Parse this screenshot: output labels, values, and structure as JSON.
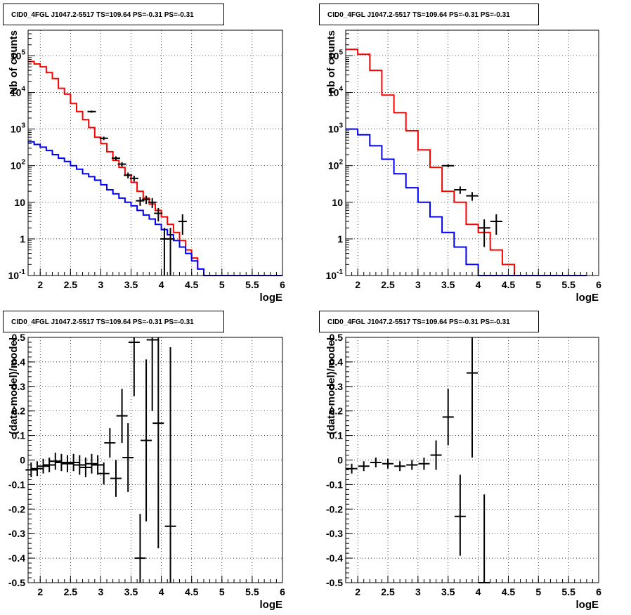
{
  "panels": [
    {
      "title": "CID0_4FGL J1047.2-5517 TS=109.64 PS=-0.31 PS=-0.31",
      "xlabel": "logE",
      "ylabel": "Nb of counts"
    },
    {
      "title": "CID0_4FGL J1047.2-5517 TS=109.64 PS=-0.31 PS=-0.31",
      "xlabel": "logE",
      "ylabel": "nb of counts"
    },
    {
      "title": "CID0_4FGL J1047.2-5517 TS=109.64 PS=-0.31 PS=-0.31",
      "xlabel": "logE",
      "ylabel": "(data-model)/model"
    },
    {
      "title": "CID0_4FGL J1047.2-5517 TS=109.64 PS=-0.31 PS=-0.31",
      "xlabel": "logE",
      "ylabel": "(data-model)/model"
    }
  ],
  "chart_data": [
    {
      "type": "line",
      "title": "CID0_4FGL J1047.2-5517 TS=109.64 PS=-0.31 PS=-0.31",
      "xlabel": "logE",
      "ylabel": "Nb of counts",
      "xlim": [
        1.8,
        6.0
      ],
      "ylim": [
        0.1,
        500000
      ],
      "yscale": "log",
      "grid": true,
      "x_ticks": [
        "2",
        "2.5",
        "3",
        "3.5",
        "4",
        "4.5",
        "5",
        "5.5",
        "6"
      ],
      "y_ticks": [
        "10^-1",
        "1",
        "10",
        "10^2",
        "10^3",
        "10^4",
        "10^5"
      ],
      "bin_edges": [
        1.8,
        1.9,
        2.0,
        2.1,
        2.2,
        2.3,
        2.4,
        2.5,
        2.6,
        2.7,
        2.8,
        2.9,
        3.0,
        3.1,
        3.2,
        3.3,
        3.4,
        3.5,
        3.6,
        3.7,
        3.8,
        3.9,
        4.0,
        4.1,
        4.2,
        4.3,
        4.4,
        4.5,
        4.6,
        4.7,
        4.8,
        4.9,
        5.0,
        5.1,
        5.2,
        5.3,
        5.4,
        5.5,
        5.6,
        5.7,
        5.8,
        5.9,
        6.0
      ],
      "series": [
        {
          "color": "#ff0000",
          "style": "step",
          "values": [
            70000,
            60000,
            50000,
            35000,
            24000,
            13000,
            9000,
            5000,
            3000,
            1800,
            1100,
            600,
            400,
            240,
            140,
            90,
            55,
            35,
            20,
            13,
            9,
            6,
            4,
            2.5,
            1.5,
            0.9,
            0.5,
            0.3,
            0.15,
            0.1,
            0.1,
            0.1,
            0.1,
            0.1,
            0.1,
            0.1,
            0.1,
            0.1,
            0.1,
            0.1,
            0.1,
            0.1
          ]
        },
        {
          "color": "#0000ff",
          "style": "step",
          "values": [
            450,
            380,
            320,
            260,
            200,
            160,
            130,
            100,
            80,
            60,
            50,
            40,
            30,
            22,
            17,
            13,
            10,
            8,
            6,
            4.5,
            3.5,
            2.5,
            1.8,
            1.3,
            0.9,
            0.6,
            0.4,
            0.25,
            0.15,
            0.1,
            0.1,
            0.1,
            0.1,
            0.1,
            0.1,
            0.1,
            0.1,
            0.1,
            0.1,
            0.1,
            0.1,
            0.1
          ]
        },
        {
          "name": "data",
          "color": "#000000",
          "style": "errorbar",
          "points": [
            {
              "x": 2.85,
              "y": 3000,
              "lo": 2800,
              "hi": 3200
            },
            {
              "x": 3.05,
              "y": 560,
              "lo": 500,
              "hi": 620
            },
            {
              "x": 3.25,
              "y": 160,
              "lo": 140,
              "hi": 180
            },
            {
              "x": 3.35,
              "y": 110,
              "lo": 95,
              "hi": 125
            },
            {
              "x": 3.45,
              "y": 55,
              "lo": 45,
              "hi": 65
            },
            {
              "x": 3.55,
              "y": 45,
              "lo": 37,
              "hi": 53
            },
            {
              "x": 3.65,
              "y": 11,
              "lo": 8,
              "hi": 14
            },
            {
              "x": 3.75,
              "y": 12,
              "lo": 9,
              "hi": 15
            },
            {
              "x": 3.85,
              "y": 10,
              "lo": 7,
              "hi": 13
            },
            {
              "x": 3.95,
              "y": 5,
              "lo": 3,
              "hi": 7
            },
            {
              "x": 4.05,
              "y": 1.0,
              "lo": 0.1,
              "hi": 2.0
            },
            {
              "x": 4.15,
              "y": 1.0,
              "lo": 0.1,
              "hi": 2.0
            },
            {
              "x": 4.35,
              "y": 3.0,
              "lo": 1.3,
              "hi": 4.7
            }
          ]
        }
      ]
    },
    {
      "type": "line",
      "title": "CID0_4FGL J1047.2-5517 TS=109.64 PS=-0.31 PS=-0.31",
      "xlabel": "logE",
      "ylabel": "nb of counts",
      "xlim": [
        1.8,
        6.0
      ],
      "ylim": [
        0.1,
        500000
      ],
      "yscale": "log",
      "grid": true,
      "x_ticks": [
        "2",
        "2.5",
        "3",
        "3.5",
        "4",
        "4.5",
        "5",
        "5.5",
        "6"
      ],
      "y_ticks": [
        "10^-1",
        "1",
        "10",
        "10^2",
        "10^3",
        "10^4",
        "10^5"
      ],
      "bin_edges": [
        1.8,
        2.0,
        2.2,
        2.4,
        2.6,
        2.8,
        3.0,
        3.2,
        3.4,
        3.6,
        3.8,
        4.0,
        4.2,
        4.4,
        4.6,
        4.8,
        5.0,
        5.2,
        5.4,
        5.6,
        5.8,
        6.0
      ],
      "series": [
        {
          "color": "#ff0000",
          "style": "step",
          "values": [
            150000,
            110000,
            40000,
            8500,
            2800,
            900,
            270,
            90,
            20,
            10,
            2.5,
            1.5,
            0.5,
            0.2,
            0.1,
            0.1,
            0.1,
            0.1,
            0.1,
            0.1
          ]
        },
        {
          "color": "#0000ff",
          "style": "step",
          "values": [
            1000,
            700,
            350,
            150,
            60,
            25,
            10,
            4,
            1.5,
            0.6,
            0.2,
            0.1,
            0.1,
            0.1,
            0.1,
            0.1,
            0.1,
            0.1,
            0.1,
            0.1
          ]
        },
        {
          "name": "data",
          "color": "#000000",
          "style": "errorbar",
          "points": [
            {
              "x": 3.5,
              "y": 100,
              "lo": 90,
              "hi": 110
            },
            {
              "x": 3.7,
              "y": 22,
              "lo": 17,
              "hi": 27
            },
            {
              "x": 3.9,
              "y": 15,
              "lo": 11,
              "hi": 19
            },
            {
              "x": 4.1,
              "y": 2.0,
              "lo": 0.6,
              "hi": 3.4
            },
            {
              "x": 4.3,
              "y": 3.0,
              "lo": 1.3,
              "hi": 4.7
            }
          ]
        }
      ]
    },
    {
      "type": "scatter",
      "title": "CID0_4FGL J1047.2-5517 TS=109.64 PS=-0.31 PS=-0.31",
      "xlabel": "logE",
      "ylabel": "(data-model)/model",
      "xlim": [
        1.8,
        6.0
      ],
      "ylim": [
        -0.5,
        0.5
      ],
      "grid": true,
      "x_ticks": [
        "2",
        "2.5",
        "3",
        "3.5",
        "4",
        "4.5",
        "5",
        "5.5",
        "6"
      ],
      "y_ticks": [
        "-0.5",
        "-0.4",
        "-0.3",
        "-0.2",
        "-0.1",
        "0",
        "0.1",
        "0.2",
        "0.3",
        "0.4",
        "0.5"
      ],
      "series": [
        {
          "name": "residuals",
          "color": "#000000",
          "style": "errorbar",
          "points": [
            {
              "x": 1.85,
              "y": -0.04,
              "lo": -0.07,
              "hi": -0.01
            },
            {
              "x": 1.95,
              "y": -0.035,
              "lo": -0.065,
              "hi": -0.005
            },
            {
              "x": 2.05,
              "y": -0.025,
              "lo": -0.055,
              "hi": 0.005
            },
            {
              "x": 2.15,
              "y": -0.02,
              "lo": -0.05,
              "hi": 0.01
            },
            {
              "x": 2.25,
              "y": -0.005,
              "lo": -0.04,
              "hi": 0.03
            },
            {
              "x": 2.35,
              "y": -0.01,
              "lo": -0.045,
              "hi": 0.025
            },
            {
              "x": 2.45,
              "y": -0.015,
              "lo": -0.05,
              "hi": 0.02
            },
            {
              "x": 2.55,
              "y": -0.01,
              "lo": -0.045,
              "hi": 0.025
            },
            {
              "x": 2.65,
              "y": -0.02,
              "lo": -0.06,
              "hi": 0.02
            },
            {
              "x": 2.75,
              "y": -0.03,
              "lo": -0.07,
              "hi": 0.01
            },
            {
              "x": 2.85,
              "y": -0.015,
              "lo": -0.055,
              "hi": 0.025
            },
            {
              "x": 2.95,
              "y": -0.02,
              "lo": -0.06,
              "hi": 0.02
            },
            {
              "x": 3.05,
              "y": -0.055,
              "lo": -0.1,
              "hi": -0.01
            },
            {
              "x": 3.15,
              "y": 0.07,
              "lo": 0.01,
              "hi": 0.13
            },
            {
              "x": 3.25,
              "y": -0.075,
              "lo": -0.15,
              "hi": 0.0
            },
            {
              "x": 3.35,
              "y": 0.18,
              "lo": 0.07,
              "hi": 0.29
            },
            {
              "x": 3.45,
              "y": 0.01,
              "lo": -0.13,
              "hi": 0.15
            },
            {
              "x": 3.55,
              "y": 0.48,
              "lo": 0.26,
              "hi": 0.5
            },
            {
              "x": 3.65,
              "y": -0.4,
              "lo": -0.5,
              "hi": -0.22
            },
            {
              "x": 3.75,
              "y": 0.08,
              "lo": -0.25,
              "hi": 0.41
            },
            {
              "x": 3.85,
              "y": 0.49,
              "lo": 0.2,
              "hi": 0.5
            },
            {
              "x": 3.95,
              "y": 0.15,
              "lo": -0.36,
              "hi": 0.5
            },
            {
              "x": 4.15,
              "y": -0.27,
              "lo": -0.5,
              "hi": 0.46
            }
          ]
        }
      ]
    },
    {
      "type": "scatter",
      "title": "CID0_4FGL J1047.2-5517 TS=109.64 PS=-0.31 PS=-0.31",
      "xlabel": "logE",
      "ylabel": "(data-model)/model",
      "xlim": [
        1.8,
        6.0
      ],
      "ylim": [
        -0.5,
        0.5
      ],
      "grid": true,
      "x_ticks": [
        "2",
        "2.5",
        "3",
        "3.5",
        "4",
        "4.5",
        "5",
        "5.5",
        "6"
      ],
      "y_ticks": [
        "-0.5",
        "-0.4",
        "-0.3",
        "-0.2",
        "-0.1",
        "0",
        "0.1",
        "0.2",
        "0.3",
        "0.4",
        "0.5"
      ],
      "series": [
        {
          "name": "residuals",
          "color": "#000000",
          "style": "errorbar",
          "points": [
            {
              "x": 1.9,
              "y": -0.035,
              "lo": -0.055,
              "hi": -0.015
            },
            {
              "x": 2.1,
              "y": -0.025,
              "lo": -0.045,
              "hi": -0.005
            },
            {
              "x": 2.3,
              "y": -0.01,
              "lo": -0.03,
              "hi": 0.01
            },
            {
              "x": 2.5,
              "y": -0.015,
              "lo": -0.035,
              "hi": 0.005
            },
            {
              "x": 2.7,
              "y": -0.025,
              "lo": -0.045,
              "hi": -0.005
            },
            {
              "x": 2.9,
              "y": -0.02,
              "lo": -0.04,
              "hi": 0.0
            },
            {
              "x": 3.1,
              "y": -0.015,
              "lo": -0.04,
              "hi": 0.01
            },
            {
              "x": 3.3,
              "y": 0.02,
              "lo": -0.04,
              "hi": 0.08
            },
            {
              "x": 3.5,
              "y": 0.175,
              "lo": 0.06,
              "hi": 0.29
            },
            {
              "x": 3.7,
              "y": -0.23,
              "lo": -0.39,
              "hi": -0.06
            },
            {
              "x": 3.9,
              "y": 0.355,
              "lo": 0.01,
              "hi": 0.5
            },
            {
              "x": 4.1,
              "y": -0.5,
              "lo": -0.5,
              "hi": -0.14
            }
          ]
        }
      ]
    }
  ]
}
